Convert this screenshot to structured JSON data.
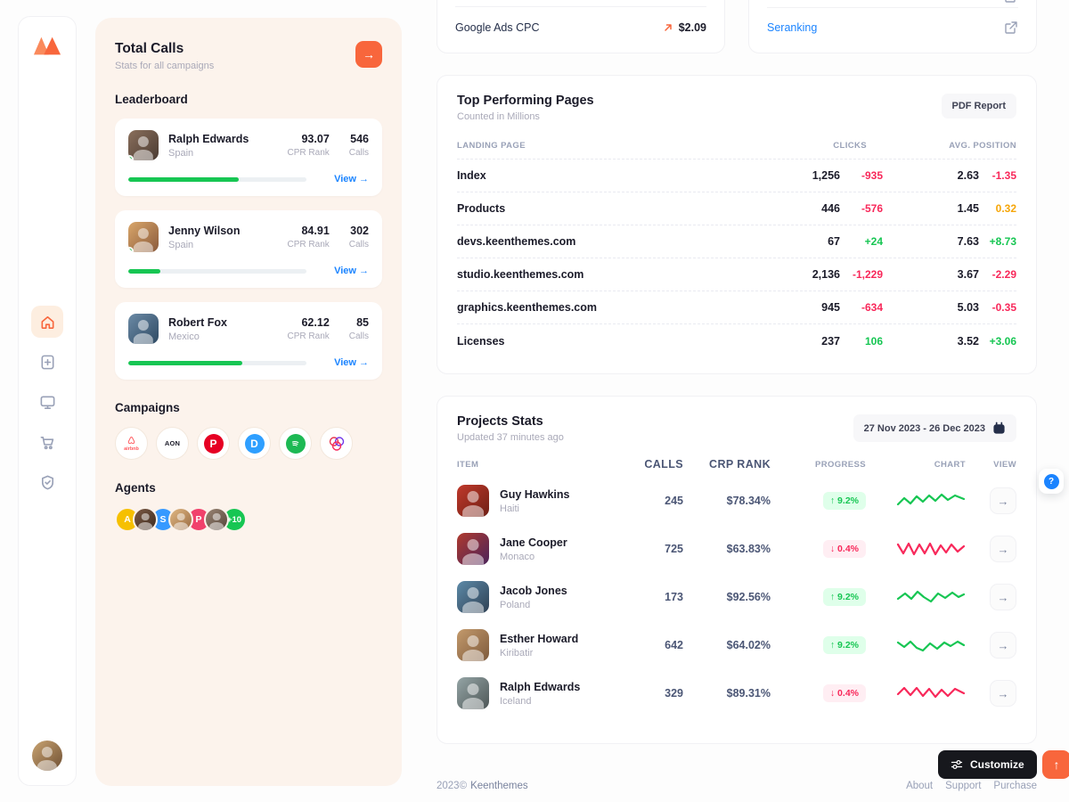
{
  "colors": {
    "accent": "#F8663C",
    "green": "#17C653",
    "red": "#F8285A",
    "blue": "#1B84FF",
    "amber": "#F6A609",
    "yellow": "#F6C000",
    "pink": "#F1416C",
    "panel_bg": "#FCF3EC"
  },
  "panel": {
    "title": "Total Calls",
    "subtitle": "Stats for all campaigns",
    "leaderboard_title": "Leaderboard",
    "rank_label": "CPR Rank",
    "calls_label": "Calls",
    "view_label": "View →",
    "leaderboard": [
      {
        "name": "Ralph Edwards",
        "country": "Spain",
        "rank": "93.07",
        "calls": "546",
        "progress": 62
      },
      {
        "name": "Jenny Wilson",
        "country": "Spain",
        "rank": "84.91",
        "calls": "302",
        "progress": 18
      },
      {
        "name": "Robert Fox",
        "country": "Mexico",
        "rank": "62.12",
        "calls": "85",
        "progress": 64
      }
    ],
    "campaigns_title": "Campaigns",
    "campaigns": {
      "airbnb": "airbnb",
      "aon": "AON",
      "pinterest": "P",
      "d": "D"
    },
    "agents_title": "Agents",
    "agents": {
      "a": "A",
      "s": "S",
      "p": "P",
      "more": "+10"
    }
  },
  "top": {
    "ads_label": "Google Ads CPC",
    "ads_value": "$2.09",
    "link": "Seranking"
  },
  "pages": {
    "title": "Top Performing Pages",
    "subtitle": "Counted in Millions",
    "report_button": "PDF Report",
    "headers": {
      "page": "LANDING PAGE",
      "clicks": "CLICKS",
      "position": "AVG. POSITION"
    },
    "rows": [
      {
        "page": "Index",
        "clicks": "1,256",
        "clicks_delta": "-935",
        "pos": "2.63",
        "pos_delta": "-1.35"
      },
      {
        "page": "Products",
        "clicks": "446",
        "clicks_delta": "-576",
        "pos": "1.45",
        "pos_delta": "0.32"
      },
      {
        "page": "devs.keenthemes.com",
        "clicks": "67",
        "clicks_delta": "+24",
        "pos": "7.63",
        "pos_delta": "+8.73"
      },
      {
        "page": "studio.keenthemes.com",
        "clicks": "2,136",
        "clicks_delta": "-1,229",
        "pos": "3.67",
        "pos_delta": "-2.29"
      },
      {
        "page": "graphics.keenthemes.com",
        "clicks": "945",
        "clicks_delta": "-634",
        "pos": "5.03",
        "pos_delta": "-0.35"
      },
      {
        "page": "Licenses",
        "clicks": "237",
        "clicks_delta": "106",
        "pos": "3.52",
        "pos_delta": "+3.06"
      }
    ]
  },
  "projects": {
    "title": "Projects Stats",
    "subtitle": "Updated 37 minutes ago",
    "date_range": "27 Nov 2023 - 26 Dec 2023",
    "headers": {
      "item": "ITEM",
      "calls": "CALLS",
      "rank": "CRP RANK",
      "progress": "PROGRESS",
      "chart": "CHART",
      "view": "VIEW"
    },
    "rows": [
      {
        "name": "Guy Hawkins",
        "country": "Haiti",
        "calls": "245",
        "rank": "$78.34%",
        "progress": "↑ 9.2%",
        "trend": "up"
      },
      {
        "name": "Jane Cooper",
        "country": "Monaco",
        "calls": "725",
        "rank": "$63.83%",
        "progress": "↓ 0.4%",
        "trend": "down"
      },
      {
        "name": "Jacob Jones",
        "country": "Poland",
        "calls": "173",
        "rank": "$92.56%",
        "progress": "↑ 9.2%",
        "trend": "up"
      },
      {
        "name": "Esther Howard",
        "country": "Kiribatir",
        "calls": "642",
        "rank": "$64.02%",
        "progress": "↑ 9.2%",
        "trend": "up"
      },
      {
        "name": "Ralph Edwards",
        "country": "Iceland",
        "calls": "329",
        "rank": "$89.31%",
        "progress": "↓ 0.4%",
        "trend": "down"
      }
    ]
  },
  "footer": {
    "copyright": "2023©",
    "brand": "Keenthemes",
    "links": [
      "About",
      "Support",
      "Purchase"
    ]
  },
  "floating": {
    "customize": "Customize"
  }
}
